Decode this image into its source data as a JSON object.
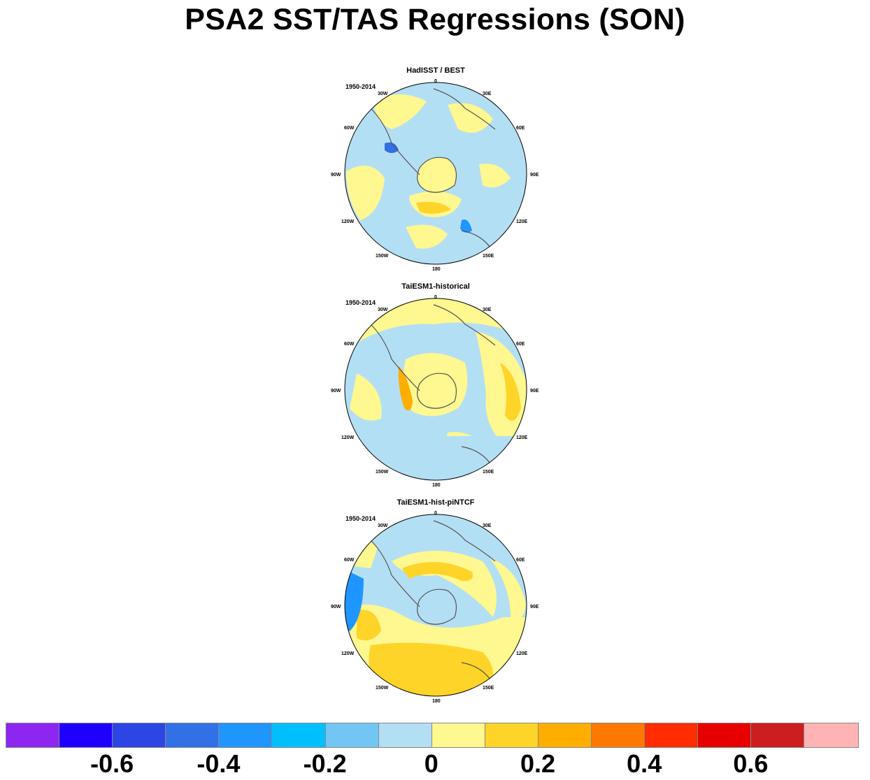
{
  "title": "PSA2 SST/TAS Regressions (SON)",
  "panels": [
    {
      "name": "HadISST / BEST",
      "period": "1950-2014"
    },
    {
      "name": "TaiESM1-historical",
      "period": "1950-2014"
    },
    {
      "name": "TaiESM1-hist-piNTCF",
      "period": "1950-2014"
    }
  ],
  "longitude_labels": {
    "lon_0": "0",
    "lon_30e": "30E",
    "lon_60e": "60E",
    "lon_90e": "90E",
    "lon_120e": "120E",
    "lon_150e": "150E",
    "lon_180": "180",
    "lon_150w": "150W",
    "lon_120w": "120W",
    "lon_90w": "90W",
    "lon_60w": "60W",
    "lon_30w": "30W"
  },
  "colorbar": {
    "colors": [
      "#8e26f2",
      "#1f00ff",
      "#2e45e6",
      "#3270e6",
      "#1f96ff",
      "#00bfff",
      "#73c6f3",
      "#b3dff5",
      "#fff78f",
      "#ffd429",
      "#ffae00",
      "#ff7800",
      "#ff2d00",
      "#e60000",
      "#cc1e1e",
      "#ffb3b3"
    ],
    "tick_labels": [
      "-0.6",
      "-0.4",
      "-0.2",
      "0",
      "0.2",
      "0.4",
      "0.6"
    ]
  }
}
